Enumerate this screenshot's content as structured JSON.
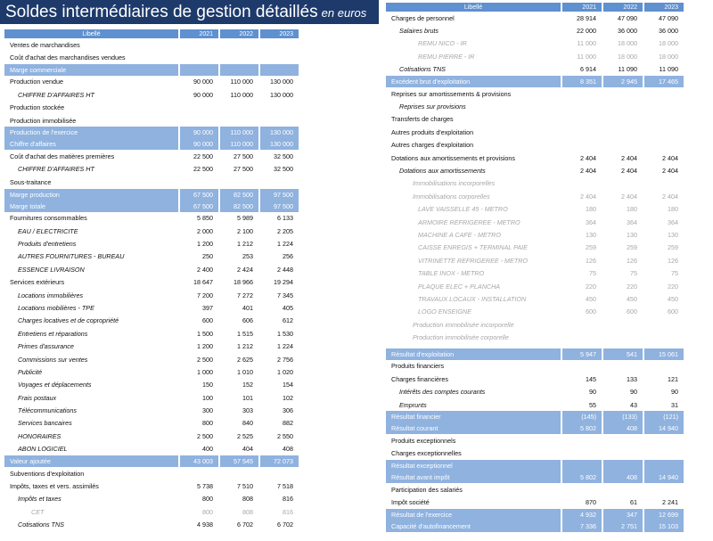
{
  "title": "Soldes intermédiaires de gestion détaillés",
  "subtitle": "en euros",
  "colors": {
    "banner": "#1d3a6b",
    "header": "#5f90cf",
    "highlight": "#8fb2df",
    "muted": "#a7a7a7"
  },
  "left": {
    "header": [
      "Libellé",
      "2021",
      "2022",
      "2023"
    ],
    "rows": [
      {
        "t": "n",
        "l": "Ventes de marchandises",
        "v": [
          "",
          "",
          ""
        ]
      },
      {
        "t": "n",
        "l": "Coût d'achat des marchandises vendues",
        "v": [
          "",
          "",
          ""
        ]
      },
      {
        "t": "b",
        "l": "Marge commerciale",
        "v": [
          "",
          "",
          ""
        ]
      },
      {
        "t": "n",
        "l": "Production vendue",
        "v": [
          "90 000",
          "110 000",
          "130 000"
        ]
      },
      {
        "t": "l2",
        "l": "CHIFFRE D'AFFAIRES HT",
        "v": [
          "90 000",
          "110 000",
          "130 000"
        ]
      },
      {
        "t": "n",
        "l": "Production stockée",
        "v": [
          "",
          "",
          ""
        ]
      },
      {
        "t": "n",
        "l": "Production immobilisée",
        "v": [
          "",
          "",
          ""
        ]
      },
      {
        "t": "b",
        "l": "Production de l'exercice",
        "v": [
          "90 000",
          "110 000",
          "130 000"
        ]
      },
      {
        "t": "b",
        "l": "Chiffre d'affaires",
        "v": [
          "90 000",
          "110 000",
          "130 000"
        ]
      },
      {
        "t": "n",
        "l": "Coût d'achat des matières premières",
        "v": [
          "22 500",
          "27 500",
          "32 500"
        ]
      },
      {
        "t": "l2",
        "l": "CHIFFRE D'AFFAIRES HT",
        "v": [
          "22 500",
          "27 500",
          "32 500"
        ]
      },
      {
        "t": "n",
        "l": "Sous-traitance",
        "v": [
          "",
          "",
          ""
        ]
      },
      {
        "t": "b",
        "l": "Marge production",
        "v": [
          "67 500",
          "82 500",
          "97 500"
        ]
      },
      {
        "t": "b",
        "l": "Marge totale",
        "v": [
          "67 500",
          "82 500",
          "97 500"
        ]
      },
      {
        "t": "n",
        "l": "Fournitures consommables",
        "v": [
          "5 850",
          "5 989",
          "6 133"
        ]
      },
      {
        "t": "l2",
        "l": "EAU / ELECTRICITE",
        "v": [
          "2 000",
          "2 100",
          "2 205"
        ]
      },
      {
        "t": "l2",
        "l": "Produits d'entretiens",
        "v": [
          "1 200",
          "1 212",
          "1 224"
        ]
      },
      {
        "t": "l2",
        "l": "AUTRES FOURNITURES - BUREAU",
        "v": [
          "250",
          "253",
          "256"
        ]
      },
      {
        "t": "l2",
        "l": "ESSENCE LIVRAISON",
        "v": [
          "2 400",
          "2 424",
          "2 448"
        ]
      },
      {
        "t": "n",
        "l": "Services extérieurs",
        "v": [
          "18 647",
          "18 966",
          "19 294"
        ]
      },
      {
        "t": "l2",
        "l": "Locations immobilières",
        "v": [
          "7 200",
          "7 272",
          "7 345"
        ]
      },
      {
        "t": "l2",
        "l": "Locations mobilières - TPE",
        "v": [
          "397",
          "401",
          "405"
        ]
      },
      {
        "t": "l2",
        "l": "Charges locatives et de copropriété",
        "v": [
          "600",
          "606",
          "612"
        ]
      },
      {
        "t": "l2",
        "l": "Entretiens et réparations",
        "v": [
          "1 500",
          "1 515",
          "1 530"
        ]
      },
      {
        "t": "l2",
        "l": "Primes d'assurance",
        "v": [
          "1 200",
          "1 212",
          "1 224"
        ]
      },
      {
        "t": "l2",
        "l": "Commissions sur ventes",
        "v": [
          "2 500",
          "2 625",
          "2 756"
        ]
      },
      {
        "t": "l2",
        "l": "Publicité",
        "v": [
          "1 000",
          "1 010",
          "1 020"
        ]
      },
      {
        "t": "l2",
        "l": "Voyages et déplacements",
        "v": [
          "150",
          "152",
          "154"
        ]
      },
      {
        "t": "l2",
        "l": "Frais postaux",
        "v": [
          "100",
          "101",
          "102"
        ]
      },
      {
        "t": "l2",
        "l": "Télécommunications",
        "v": [
          "300",
          "303",
          "306"
        ]
      },
      {
        "t": "l2",
        "l": "Services bancaires",
        "v": [
          "800",
          "840",
          "882"
        ]
      },
      {
        "t": "l2",
        "l": "HONORAIRES",
        "v": [
          "2 500",
          "2 525",
          "2 550"
        ]
      },
      {
        "t": "l2",
        "l": "ABON LOGICIEL",
        "v": [
          "400",
          "404",
          "408"
        ]
      },
      {
        "t": "b",
        "l": "Valeur ajoutée",
        "v": [
          "43 003",
          "57 545",
          "72 073"
        ]
      },
      {
        "t": "n",
        "l": "Subventions d'exploitation",
        "v": [
          "",
          "",
          ""
        ]
      },
      {
        "t": "n",
        "l": "Impôts, taxes et vers. assimilés",
        "v": [
          "5 738",
          "7 510",
          "7 518"
        ]
      },
      {
        "t": "l2",
        "l": "Impôts et taxes",
        "v": [
          "800",
          "808",
          "816"
        ]
      },
      {
        "t": "g3",
        "l": "CET",
        "v": [
          "800",
          "808",
          "816"
        ]
      },
      {
        "t": "l2",
        "l": "Cotisations TNS",
        "v": [
          "4 938",
          "6 702",
          "6 702"
        ]
      }
    ]
  },
  "right": {
    "header": [
      "Libellé",
      "2021",
      "2022",
      "2023"
    ],
    "rows": [
      {
        "t": "n",
        "l": "Charges de personnel",
        "v": [
          "28 914",
          "47 090",
          "47 090"
        ]
      },
      {
        "t": "l2",
        "l": "Salaires bruts",
        "v": [
          "22 000",
          "36 000",
          "36 000"
        ]
      },
      {
        "t": "g4",
        "l": "REMU NICO - IR",
        "v": [
          "11 000",
          "18 000",
          "18 000"
        ]
      },
      {
        "t": "g4",
        "l": "REMU PIERRE - IR",
        "v": [
          "11 000",
          "18 000",
          "18 000"
        ]
      },
      {
        "t": "l2",
        "l": "Cotisations TNS",
        "v": [
          "6 914",
          "11 090",
          "11 090"
        ]
      },
      {
        "t": "b",
        "l": "Excédent brut d'exploitation",
        "v": [
          "8 351",
          "2 945",
          "17 465"
        ]
      },
      {
        "t": "n",
        "l": "Reprises sur amortissements & provisions",
        "v": [
          "",
          "",
          ""
        ]
      },
      {
        "t": "l2",
        "l": "Reprises sur provisions",
        "v": [
          "",
          "",
          ""
        ]
      },
      {
        "t": "n",
        "l": "Transferts de charges",
        "v": [
          "",
          "",
          ""
        ]
      },
      {
        "t": "n",
        "l": "Autres produits d'exploitation",
        "v": [
          "",
          "",
          ""
        ]
      },
      {
        "t": "n",
        "l": "Autres charges d'exploitation",
        "v": [
          "",
          "",
          ""
        ]
      },
      {
        "t": "n",
        "l": "Dotations aux amortissements et provisions",
        "v": [
          "2 404",
          "2 404",
          "2 404"
        ]
      },
      {
        "t": "l2",
        "l": "Dotations aux amortissements",
        "v": [
          "2 404",
          "2 404",
          "2 404"
        ]
      },
      {
        "t": "g3",
        "l": "Immobilisations incorporelles",
        "v": [
          "",
          "",
          ""
        ]
      },
      {
        "t": "g3",
        "l": "Immobilisations corporelles",
        "v": [
          "2 404",
          "2 404",
          "2 404"
        ]
      },
      {
        "t": "g4",
        "l": "LAVE VAISSELLE 45 - METRO",
        "v": [
          "180",
          "180",
          "180"
        ]
      },
      {
        "t": "g4",
        "l": "ARMOIRE REFRIGEREE - METRO",
        "v": [
          "364",
          "364",
          "364"
        ]
      },
      {
        "t": "g4",
        "l": "MACHINE A CAFE - METRO",
        "v": [
          "130",
          "130",
          "130"
        ]
      },
      {
        "t": "g4",
        "l": "CAISSE ENREGIS + TERMINAL PAIE",
        "v": [
          "259",
          "259",
          "259"
        ]
      },
      {
        "t": "g4",
        "l": "VITRINETTE REFRIGEREE - METRO",
        "v": [
          "126",
          "126",
          "126"
        ]
      },
      {
        "t": "g4",
        "l": "TABLE INOX - METRO",
        "v": [
          "75",
          "75",
          "75"
        ]
      },
      {
        "t": "g4",
        "l": "PLAQUE ELEC + PLANCHA",
        "v": [
          "220",
          "220",
          "220"
        ]
      },
      {
        "t": "g4",
        "l": "TRAVAUX LOCAUX - INSTALLATION",
        "v": [
          "450",
          "450",
          "450"
        ]
      },
      {
        "t": "g4",
        "l": "LOGO ENSEIGNE",
        "v": [
          "600",
          "600",
          "600"
        ]
      },
      {
        "t": "g3",
        "l": "Production immobilisée incorporelle",
        "v": [
          "",
          "",
          ""
        ]
      },
      {
        "t": "g3",
        "l": "Production immobilisée corporelle",
        "v": [
          "",
          "",
          ""
        ]
      },
      {
        "t": "sp",
        "l": "",
        "v": [
          "",
          "",
          ""
        ]
      },
      {
        "t": "b",
        "l": "Résultat d'exploitation",
        "v": [
          "5 947",
          "541",
          "15 061"
        ]
      },
      {
        "t": "n",
        "l": "Produits financiers",
        "v": [
          "",
          "",
          ""
        ]
      },
      {
        "t": "n",
        "l": "Charges financières",
        "v": [
          "145",
          "133",
          "121"
        ]
      },
      {
        "t": "l2",
        "l": "Intérêts des comptes courants",
        "v": [
          "90",
          "90",
          "90"
        ]
      },
      {
        "t": "l2",
        "l": "Emprunts",
        "v": [
          "55",
          "43",
          "31"
        ]
      },
      {
        "t": "b",
        "l": "Résultat financier",
        "v": [
          "(145)",
          "(133)",
          "(121)"
        ]
      },
      {
        "t": "b",
        "l": "Résultat courant",
        "v": [
          "5 802",
          "408",
          "14 940"
        ]
      },
      {
        "t": "n",
        "l": "Produits exceptionnels",
        "v": [
          "",
          "",
          ""
        ]
      },
      {
        "t": "n",
        "l": "Charges exceptionnelles",
        "v": [
          "",
          "",
          ""
        ]
      },
      {
        "t": "b",
        "l": "Résultat exceptionnel",
        "v": [
          "",
          "",
          ""
        ]
      },
      {
        "t": "b",
        "l": "Résultat avant impôt",
        "v": [
          "5 802",
          "408",
          "14 940"
        ]
      },
      {
        "t": "n",
        "l": "Participation des salariés",
        "v": [
          "",
          "",
          ""
        ]
      },
      {
        "t": "n",
        "l": "Impôt société",
        "v": [
          "870",
          "61",
          "2 241"
        ]
      },
      {
        "t": "b",
        "l": "Résultat de l'exercice",
        "v": [
          "4 932",
          "347",
          "12 699"
        ]
      },
      {
        "t": "b",
        "l": "Capacité d'autofinancement",
        "v": [
          "7 336",
          "2 751",
          "15 103"
        ]
      }
    ]
  }
}
